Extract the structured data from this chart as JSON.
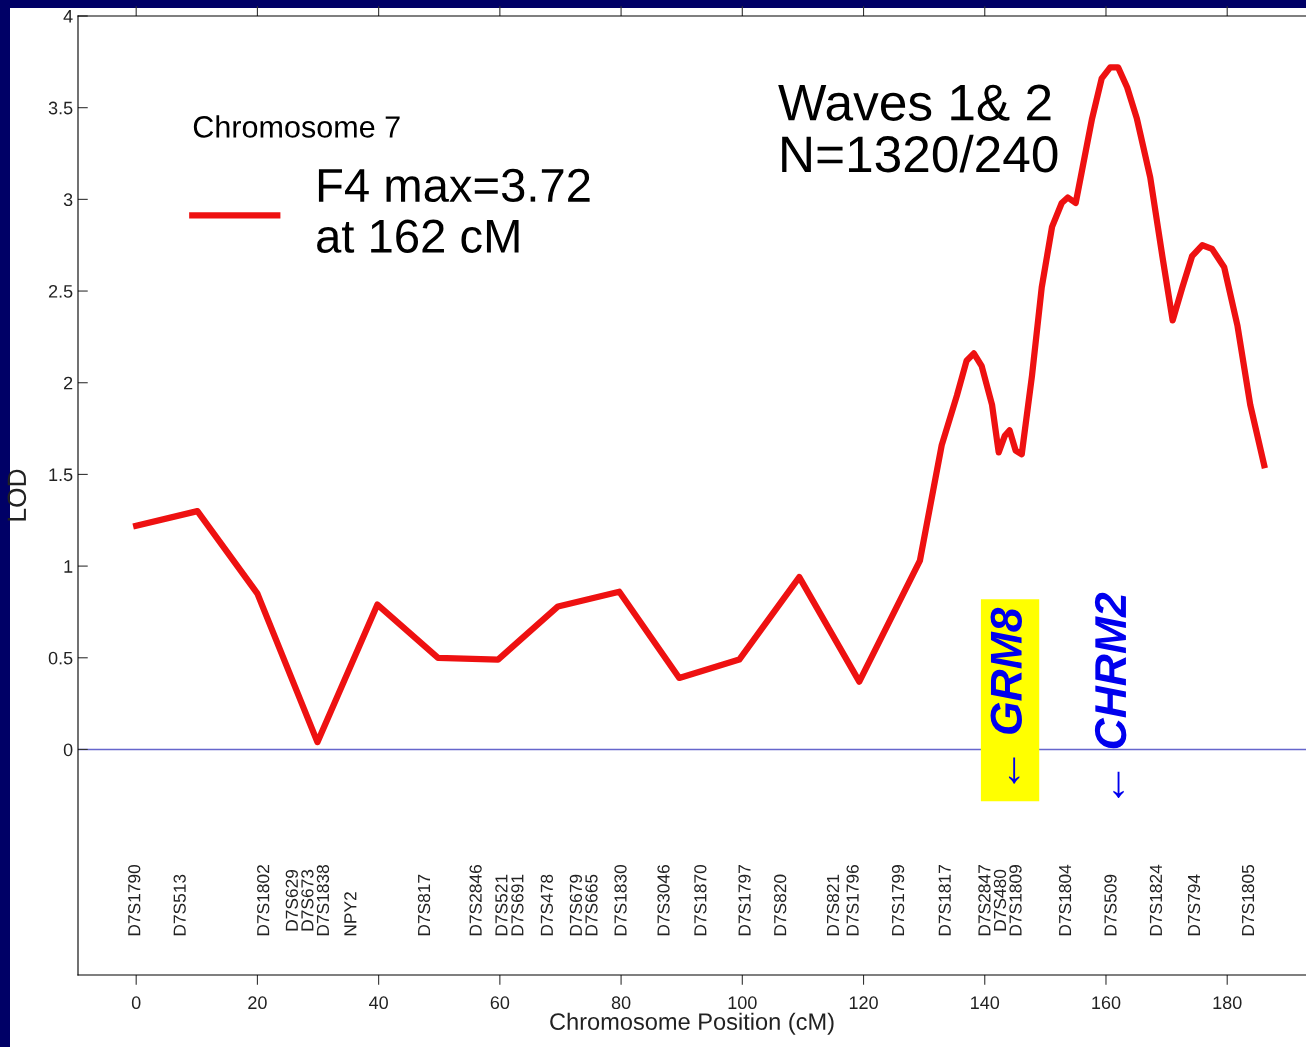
{
  "chart_data": {
    "type": "line",
    "xlabel": "Chromosome Position (cM)",
    "ylabel": "LOD",
    "legend_title": "Chromosome 7",
    "legend": "top left",
    "grid": false,
    "marker": "none",
    "line_style": "solid",
    "xlim": [
      -9.6,
      193
    ],
    "ylim": [
      -1.23,
      4
    ],
    "xticks": [
      0,
      20,
      40,
      60,
      80,
      100,
      120,
      140,
      160,
      180
    ],
    "yticks": [
      0,
      0.5,
      1,
      1.5,
      2,
      2.5,
      3,
      3.5,
      4
    ],
    "ref_lines": [
      {
        "axis": "y",
        "value": 0,
        "color": "#6666cc"
      }
    ],
    "x": [
      0,
      10.1,
      20,
      29.9,
      39.8,
      49.8,
      59.7,
      69.6,
      79.7,
      89.6,
      99.5,
      109.4,
      119.3,
      129.3,
      132.9,
      135.4,
      137,
      138.2,
      139.5,
      141.2,
      142.3,
      143.3,
      144.1,
      145.1,
      146.1,
      147.8,
      149.4,
      151.1,
      152.7,
      153.7,
      155,
      156,
      157.7,
      159.3,
      160.7,
      162,
      163.5,
      165.1,
      167.3,
      169.3,
      171,
      172.6,
      174.2,
      175.9,
      177.5,
      179.5,
      181.7,
      183.8,
      186.1
    ],
    "series": [
      {
        "name": "F4 max=3.72\nat 162 cM",
        "color": "#ee1111",
        "values": [
          1.22,
          1.3,
          0.85,
          0.04,
          0.79,
          0.5,
          0.49,
          0.78,
          0.86,
          0.39,
          0.49,
          0.94,
          0.37,
          1.03,
          1.66,
          1.93,
          2.12,
          2.16,
          2.09,
          1.88,
          1.62,
          1.71,
          1.74,
          1.63,
          1.61,
          2.04,
          2.52,
          2.85,
          2.98,
          3.01,
          2.98,
          3.15,
          3.44,
          3.66,
          3.72,
          3.72,
          3.61,
          3.44,
          3.12,
          2.69,
          2.34,
          2.52,
          2.69,
          2.75,
          2.73,
          2.63,
          2.31,
          1.88,
          1.55
        ]
      }
    ],
    "annotations": [
      "Waves 1& 2\nN=1320/240",
      "← GRM8",
      "← CHRM2",
      "D7S1790",
      "D7S513",
      "D7S1802",
      "D7S629\nD7S673\nD7S1838",
      "NPY2",
      "D7S817",
      "D7S2846",
      "D7S521",
      "D7S691",
      "D7S478",
      "D7S679\nD7S665",
      "D7S1830",
      "D7S3046",
      "D7S1870",
      "D7S1797",
      "D7S820",
      "D7S821",
      "D7S1796",
      "D7S1799",
      "D7S1817",
      "D7S2847\nD7S480\nD7S1809",
      "D7S1804",
      "D7S509",
      "D7S1824",
      "D7S794",
      "D7S1805"
    ]
  }
}
